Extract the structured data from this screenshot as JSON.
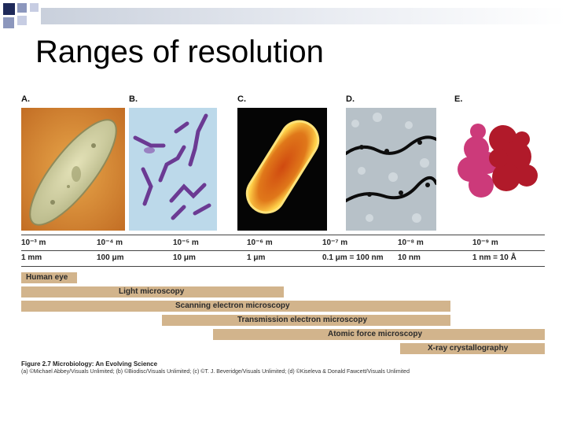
{
  "slide": {
    "title": "Ranges of resolution"
  },
  "panels": [
    {
      "letter": "A.",
      "subject": "paramecium-light-micrograph"
    },
    {
      "letter": "B.",
      "subject": "stained-bacteria-chains"
    },
    {
      "letter": "C.",
      "subject": "rod-bacterium-sem"
    },
    {
      "letter": "D.",
      "subject": "dna-strands-afm"
    },
    {
      "letter": "E.",
      "subject": "protein-molecular-model"
    }
  ],
  "scale": {
    "meters": [
      "10⁻³ m",
      "10⁻⁴ m",
      "10⁻⁵ m",
      "10⁻⁶ m",
      "10⁻⁷ m",
      "10⁻⁸ m",
      "10⁻⁹ m"
    ],
    "units": [
      "1 mm",
      "100 μm",
      "10 μm",
      "1 μm",
      "0.1 μm = 100 nm",
      "10 nm",
      "1 nm = 10 Å"
    ]
  },
  "techniques": [
    {
      "label": "Human eye"
    },
    {
      "label": "Light microscopy"
    },
    {
      "label": "Scanning electron microscopy"
    },
    {
      "label": "Transmission electron microscopy"
    },
    {
      "label": "Atomic force microscopy"
    },
    {
      "label": "X-ray crystallography"
    }
  ],
  "caption": {
    "title": "Figure 2.7  Microbiology: An Evolving Science",
    "credits": "(a) ©Michael Abbey/Visuals Unlimited; (b) ©Biodisc/Visuals Unlimited; (c) ©T. J. Beveridge/Visuals Unlimited; (d) ©Kiseleva & Donald Fawcett/Visuals Unlimited"
  },
  "colors": {
    "bar_fill": "#d2b48c",
    "header_band": "#c9d0dc",
    "deco_dark": "#1f2a5a",
    "deco_mid": "#8c97bd",
    "deco_light": "#c7cde3"
  }
}
